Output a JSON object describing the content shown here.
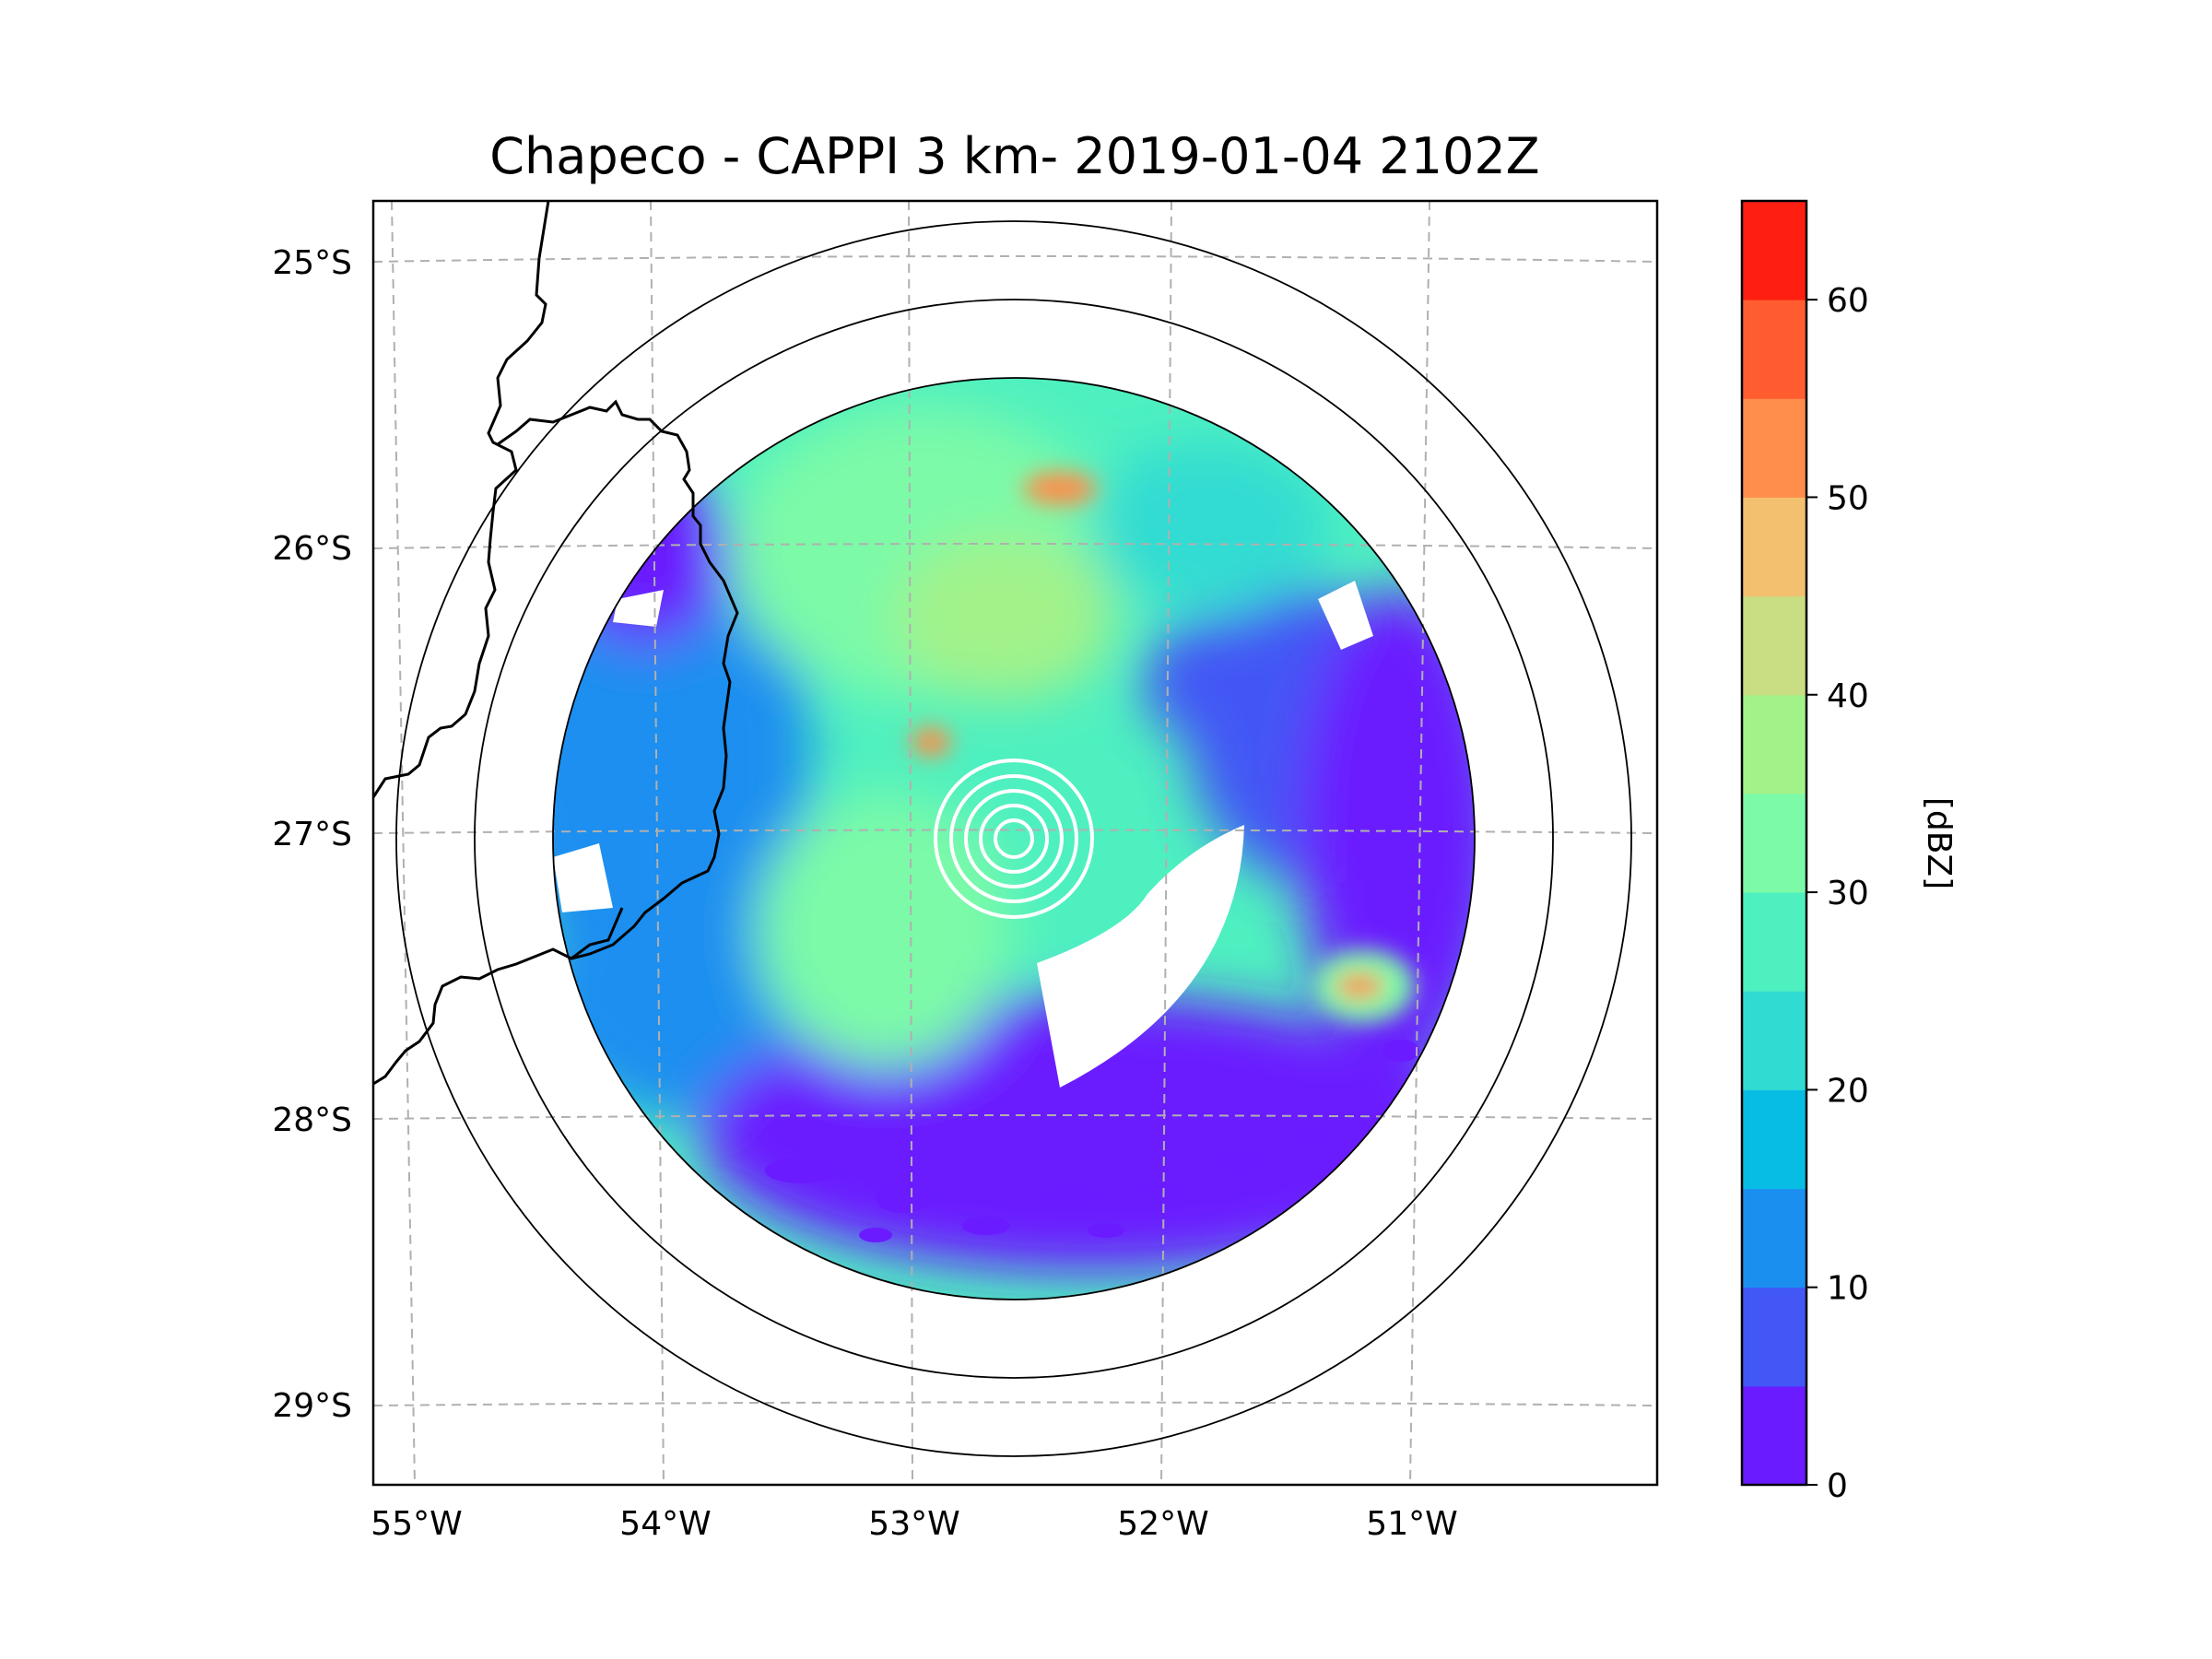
{
  "title": "Chapeco - CAPPI 3 km- 2019-01-04 2102Z",
  "map": {
    "lat_labels": [
      "25°S",
      "26°S",
      "27°S",
      "28°S",
      "29°S"
    ],
    "lon_labels": [
      "55°W",
      "54°W",
      "53°W",
      "52°W",
      "51°W"
    ],
    "gridlines": true,
    "range_rings": 2
  },
  "colorbar": {
    "label": "[dBZ]",
    "ticks": [
      "0",
      "10",
      "20",
      "30",
      "40",
      "50",
      "60"
    ],
    "min": 0,
    "max": 65,
    "step": 5,
    "colors": [
      "#6a1bff",
      "#4257f5",
      "#1b8ff0",
      "#07bde3",
      "#30dcd2",
      "#4ef0c0",
      "#7cfaa8",
      "#a2f28a",
      "#c9dd82",
      "#f2c06e",
      "#ff8e4c",
      "#ff5d30",
      "#ff1f12"
    ]
  },
  "radar": {
    "colors": {
      "purple": "#6a1bff",
      "blue": "#4257f5",
      "midblue": "#1b8ff0",
      "cyan": "#30dcd2",
      "teal": "#4ef0c0",
      "mint": "#7cfaa8",
      "lightgreen": "#a2f28a",
      "orange": "#ff8e4c"
    }
  }
}
